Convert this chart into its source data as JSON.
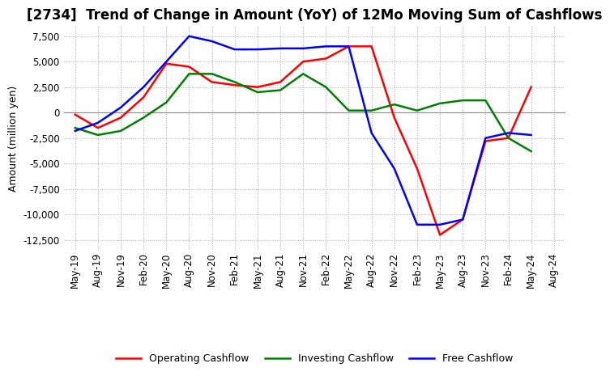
{
  "title": "[2734]  Trend of Change in Amount (YoY) of 12Mo Moving Sum of Cashflows",
  "ylabel": "Amount (million yen)",
  "ylim": [
    -13500,
    8500
  ],
  "yticks": [
    7500,
    5000,
    2500,
    0,
    -2500,
    -5000,
    -7500,
    -10000,
    -12500
  ],
  "x_labels": [
    "May-19",
    "Aug-19",
    "Nov-19",
    "Feb-20",
    "May-20",
    "Aug-20",
    "Nov-20",
    "Feb-21",
    "May-21",
    "Aug-21",
    "Nov-21",
    "Feb-22",
    "May-22",
    "Aug-22",
    "Nov-22",
    "Feb-23",
    "May-23",
    "Aug-23",
    "Nov-23",
    "Feb-24",
    "May-24",
    "Aug-24"
  ],
  "operating_cashflow": [
    -200,
    -1500,
    -500,
    1500,
    4800,
    4500,
    3000,
    2700,
    2500,
    3000,
    5000,
    5300,
    6500,
    6500,
    -500,
    -5500,
    -12000,
    -10500,
    -2800,
    -2500,
    2500,
    null
  ],
  "investing_cashflow": [
    -1500,
    -2200,
    -1800,
    -500,
    1000,
    3800,
    3800,
    3000,
    2000,
    2200,
    3800,
    2500,
    200,
    200,
    800,
    200,
    900,
    1200,
    1200,
    -2500,
    -3800,
    null
  ],
  "free_cashflow": [
    -1800,
    -1000,
    500,
    2500,
    5000,
    7500,
    7000,
    6200,
    6200,
    6300,
    6300,
    6500,
    6500,
    -2000,
    -5500,
    -11000,
    -11000,
    -10500,
    -2500,
    -2000,
    -2200,
    null
  ],
  "operating_color": "#FF0000",
  "investing_color": "#008000",
  "free_color": "#0000FF",
  "background_color": "#FFFFFF",
  "grid_color": "#AAAAAA",
  "title_fontsize": 12,
  "label_fontsize": 9,
  "tick_fontsize": 8.5
}
